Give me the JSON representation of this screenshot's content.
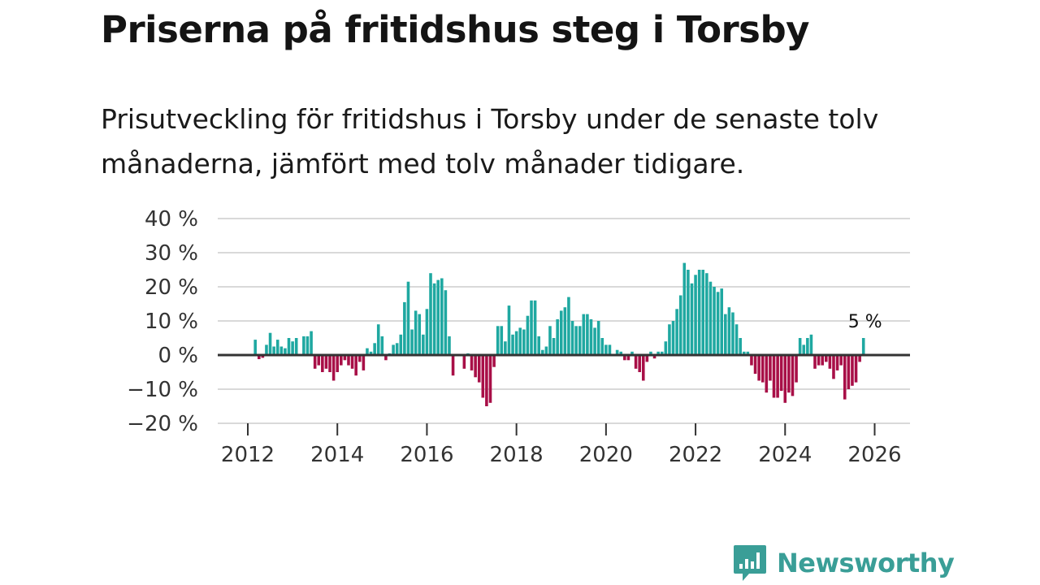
{
  "header": {
    "title": "Priserna på fritidshus steg i Torsby",
    "subtitle": "Prisutveckling för fritidshus i Torsby under de senaste tolv månaderna, jämfört med tolv månader tidigare."
  },
  "brand": {
    "name": "Newsworthy"
  },
  "colors": {
    "positive": "#1fa8a1",
    "negative": "#a80f47",
    "grid": "#d9d9d9",
    "zero_line": "#333333",
    "brand": "#3a9e97"
  },
  "chart_data": {
    "type": "bar",
    "title": "",
    "xlabel": "",
    "ylabel": "",
    "ylim": [
      -20,
      40
    ],
    "y_ticks": [
      40,
      30,
      20,
      10,
      0,
      -10,
      -20
    ],
    "y_tick_labels": [
      "40 %",
      "30 %",
      "20 %",
      "10 %",
      "0 %",
      "−10 %",
      "−20 %"
    ],
    "x_ticks": [
      2012,
      2014,
      2016,
      2018,
      2020,
      2022,
      2024,
      2026
    ],
    "x_tick_labels": [
      "2012",
      "2014",
      "2016",
      "2018",
      "2020",
      "2022",
      "2024",
      "2026"
    ],
    "x_range": [
      2011.5,
      2026.75
    ],
    "series_start": 2012.0,
    "series_step_months": 1,
    "values": [
      null,
      null,
      4.5,
      -1.2,
      -0.8,
      3,
      6.5,
      2.5,
      4.5,
      2.5,
      2.0,
      5.0,
      4.0,
      5.0,
      null,
      5.5,
      5.5,
      7.0,
      -4.0,
      -3.0,
      -5.0,
      -4.0,
      -5.0,
      -7.5,
      -5.0,
      -3.0,
      -1.5,
      -3.0,
      -4.0,
      -6.0,
      -2.0,
      -4.5,
      2.0,
      1.0,
      3.5,
      9.0,
      5.5,
      -1.5,
      0.5,
      3.0,
      3.5,
      6.0,
      15.5,
      21.5,
      7.5,
      13.0,
      12.0,
      6.0,
      13.5,
      24.0,
      21.0,
      22.0,
      22.5,
      19.0,
      5.5,
      -6.0,
      null,
      null,
      -4.0,
      0.5,
      -4.5,
      -6.5,
      -8.0,
      -12.5,
      -15.0,
      -14.0,
      -3.5,
      8.5,
      8.5,
      4.0,
      14.5,
      6.0,
      7.0,
      8.0,
      7.5,
      11.5,
      16.0,
      16.0,
      5.5,
      1.5,
      2.5,
      8.5,
      5.0,
      10.5,
      13.0,
      14.0,
      17.0,
      10.0,
      8.5,
      8.5,
      12.0,
      12.0,
      10.5,
      8.0,
      10.0,
      5.0,
      3.0,
      3.0,
      null,
      1.5,
      1.0,
      -1.5,
      -1.5,
      1.0,
      -4.0,
      -5.0,
      -7.5,
      -2.0,
      1.0,
      -1.0,
      1.0,
      1.0,
      4.0,
      9.0,
      10.0,
      13.5,
      17.5,
      27.0,
      25.0,
      21.0,
      23.5,
      25.0,
      25.0,
      24.0,
      21.5,
      20.0,
      18.5,
      19.5,
      12.0,
      14.0,
      12.5,
      9.0,
      5.0,
      1.0,
      1.0,
      -3.0,
      -5.5,
      -7.5,
      -8.0,
      -11.0,
      -7.5,
      -12.5,
      -12.5,
      -10.5,
      -14.0,
      -11.0,
      -12.0,
      -8.0,
      5.0,
      3.0,
      5.0,
      6.0,
      -4.0,
      -3.0,
      -3.0,
      -2.0,
      -4.0,
      -7.0,
      -4.5,
      -3.0,
      -13.0,
      -10.0,
      -9.0,
      -8.0,
      -2.0,
      5.0
    ],
    "annotation": {
      "label": "5 %",
      "value": 5,
      "position": "last bar"
    }
  }
}
